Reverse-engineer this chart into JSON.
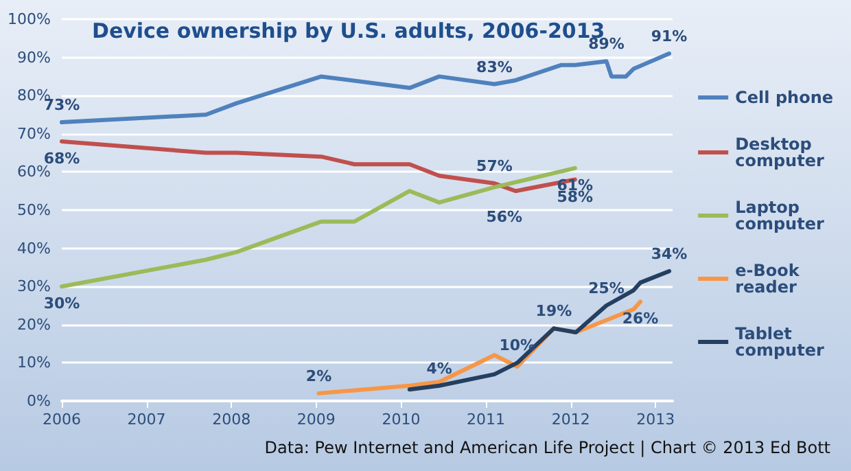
{
  "chart_data": {
    "type": "line",
    "title": "Device ownership by U.S. adults, 2006-2013",
    "annotations": [
      "Data: Pew Internet and American Life Project | Chart © 2013 Ed Bott"
    ],
    "xlim": [
      2006,
      2013.2
    ],
    "xticks": [
      2006,
      2007,
      2008,
      2009,
      2010,
      2011,
      2012,
      2013
    ],
    "ylim": [
      0,
      100
    ],
    "yticks": [
      {
        "value": 0,
        "label": "0%"
      },
      {
        "value": 10,
        "label": "10%"
      },
      {
        "value": 20,
        "label": "20%"
      },
      {
        "value": 30,
        "label": "30%"
      },
      {
        "value": 40,
        "label": "40%"
      },
      {
        "value": 50,
        "label": "50%"
      },
      {
        "value": 60,
        "label": "60%"
      },
      {
        "value": 70,
        "label": "70%"
      },
      {
        "value": 80,
        "label": "80%"
      },
      {
        "value": 90,
        "label": "90%"
      },
      {
        "value": 100,
        "label": "100%"
      }
    ],
    "grid": "y",
    "legend": "right",
    "marker": "none",
    "line_style": "solid",
    "series": [
      {
        "name": "Cell phone",
        "color": "#4f81bd",
        "x": [
          2006,
          2007.7,
          2008.06,
          2009.06,
          2010.1,
          2010.45,
          2011.1,
          2011.35,
          2011.89,
          2012.05,
          2012.42,
          2012.48,
          2012.65,
          2012.74,
          2013.16
        ],
        "values": [
          73,
          75,
          78,
          85,
          82,
          85,
          83,
          84,
          88,
          88,
          89,
          85,
          85,
          87,
          91
        ],
        "value_labels": [
          "73%",
          null,
          null,
          null,
          null,
          null,
          "83%",
          null,
          null,
          null,
          "89%",
          null,
          null,
          null,
          "91%"
        ]
      },
      {
        "name": "Desktop computer",
        "color": "#c0504d",
        "x": [
          2006,
          2007.7,
          2008.06,
          2009.06,
          2009.45,
          2010.1,
          2010.45,
          2011.1,
          2011.35,
          2012.05
        ],
        "values": [
          68,
          65,
          65,
          64,
          62,
          62,
          59,
          57,
          55,
          58
        ],
        "value_labels": [
          "68%",
          null,
          null,
          null,
          null,
          null,
          null,
          "57%",
          null,
          "58%"
        ]
      },
      {
        "name": "Laptop computer",
        "color": "#9bbb59",
        "x": [
          2006,
          2007.7,
          2008.06,
          2009.06,
          2009.45,
          2010.1,
          2010.45,
          2011.1,
          2012.05
        ],
        "values": [
          30,
          37,
          39,
          47,
          47,
          55,
          52,
          56,
          61
        ],
        "value_labels": [
          "30%",
          null,
          null,
          null,
          null,
          null,
          null,
          "56%",
          "61%"
        ]
      },
      {
        "name": "e-Book reader",
        "color": "#f79646",
        "x": [
          2009.03,
          2010.1,
          2010.45,
          2011.1,
          2011.37,
          2011.8,
          2012.06,
          2012.74,
          2012.82
        ],
        "values": [
          2,
          4,
          5,
          12,
          9,
          19,
          18,
          24,
          26
        ],
        "value_labels": [
          "2%",
          null,
          null,
          null,
          null,
          null,
          null,
          null,
          "26%"
        ]
      },
      {
        "name": "Tablet computer",
        "color": "#243f60",
        "x": [
          2010.1,
          2010.45,
          2011.1,
          2011.37,
          2011.8,
          2012.06,
          2012.42,
          2012.74,
          2012.82,
          2013.16
        ],
        "values": [
          3,
          4,
          7,
          10,
          19,
          18,
          25,
          29,
          31,
          34
        ],
        "value_labels": [
          null,
          "4%",
          null,
          "10%",
          "19%",
          null,
          "25%",
          null,
          null,
          "34%"
        ]
      }
    ]
  }
}
